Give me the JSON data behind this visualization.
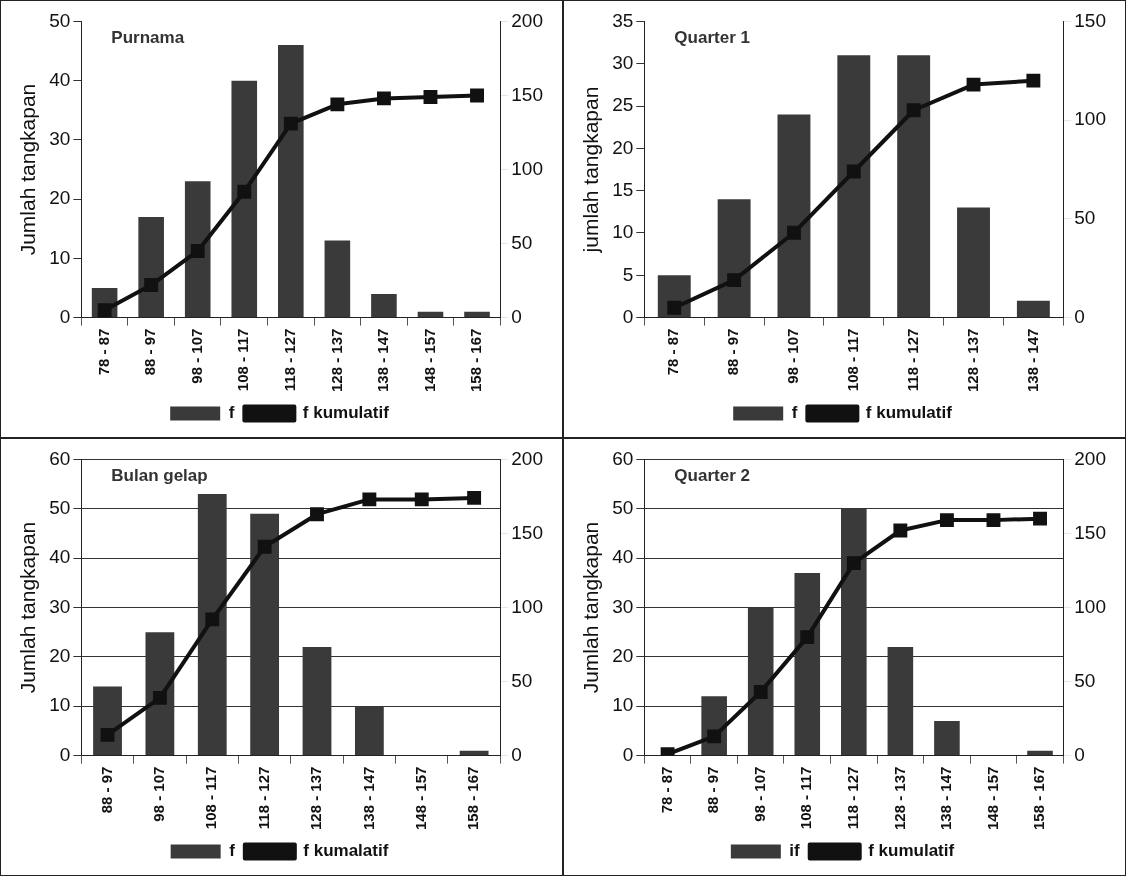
{
  "chart_data": [
    {
      "type": "bar",
      "title": "Purnama",
      "ylabel": "Jumlah tangkapan",
      "categories": [
        "78 - 87",
        "88 - 97",
        "98 - 107",
        "108 - 117",
        "118 - 127",
        "128 - 137",
        "138 - 147",
        "148 - 157",
        "158 - 167"
      ],
      "series": [
        {
          "name": "f",
          "color": "#3a3a3a",
          "values": [
            5,
            17,
            23,
            40,
            46,
            13,
            4,
            1,
            1
          ]
        },
        {
          "name": "f kumulatif",
          "type": "line",
          "axis": "y2",
          "color": "#111111",
          "values": [
            5,
            22,
            45,
            85,
            131,
            144,
            148,
            149,
            150
          ]
        }
      ],
      "ylim": [
        0,
        50
      ],
      "yticks": [
        0,
        10,
        20,
        30,
        40,
        50
      ],
      "y2lim": [
        0,
        200
      ],
      "y2ticks": [
        0,
        50,
        100,
        150,
        200
      ],
      "legend": "bottom",
      "marker": "square"
    },
    {
      "type": "bar",
      "title": "Quarter 1",
      "ylabel": "jumlah tangkapan",
      "categories": [
        "78 - 87",
        "88 - 97",
        "98 - 107",
        "108 - 117",
        "118 - 127",
        "128 - 137",
        "138 - 147"
      ],
      "series": [
        {
          "name": "f",
          "color": "#3a3a3a",
          "values": [
            5,
            14,
            24,
            31,
            31,
            13,
            2
          ]
        },
        {
          "name": "f kumulatif",
          "type": "line",
          "axis": "y2",
          "color": "#111111",
          "values": [
            5,
            19,
            43,
            74,
            105,
            118,
            120
          ]
        }
      ],
      "ylim": [
        0,
        35
      ],
      "yticks": [
        0,
        5,
        10,
        15,
        20,
        25,
        30,
        35
      ],
      "y2lim": [
        0,
        150
      ],
      "y2ticks": [
        0,
        50,
        100,
        150
      ],
      "legend": "bottom",
      "marker": "square"
    },
    {
      "type": "bar",
      "title": "Bulan gelap",
      "ylabel": "Jumlah tangkapan",
      "categories": [
        "88 - 97",
        "98 - 107",
        "108 - 117",
        "118 - 127",
        "128 - 137",
        "138 - 147",
        "148 - 157",
        "158 - 167"
      ],
      "series": [
        {
          "name": "f",
          "color": "#3a3a3a",
          "values": [
            14,
            25,
            53,
            49,
            22,
            10,
            0,
            1
          ]
        },
        {
          "name": "f kumalatif",
          "type": "line",
          "axis": "y2",
          "color": "#111111",
          "values": [
            14,
            39,
            92,
            141,
            163,
            173,
            173,
            174
          ]
        }
      ],
      "ylim": [
        0,
        60
      ],
      "yticks": [
        0,
        10,
        20,
        30,
        40,
        50,
        60
      ],
      "y2lim": [
        0,
        200
      ],
      "y2ticks": [
        0,
        50,
        100,
        150,
        200
      ],
      "grid": "y",
      "legend": "bottom",
      "marker": "square"
    },
    {
      "type": "bar",
      "title": "Quarter 2",
      "ylabel": "Jumlah tangkapan",
      "categories": [
        "78 - 87",
        "88 - 97",
        "98 - 107",
        "108 - 117",
        "118 - 127",
        "128 - 137",
        "138 - 147",
        "148 - 157",
        "158 - 167"
      ],
      "series": [
        {
          "name": "if",
          "color": "#3a3a3a",
          "values": [
            null,
            12,
            30,
            37,
            50,
            22,
            7,
            0,
            1
          ]
        },
        {
          "name": "f kumulatif",
          "type": "line",
          "axis": "y2",
          "color": "#111111",
          "values": [
            1,
            13,
            43,
            80,
            130,
            152,
            159,
            159,
            160
          ]
        }
      ],
      "ylim": [
        0,
        60
      ],
      "yticks": [
        0,
        10,
        20,
        30,
        40,
        50,
        60
      ],
      "y2lim": [
        0,
        200
      ],
      "y2ticks": [
        0,
        50,
        100,
        150,
        200
      ],
      "grid": "y",
      "legend": "bottom",
      "marker": "square"
    }
  ]
}
